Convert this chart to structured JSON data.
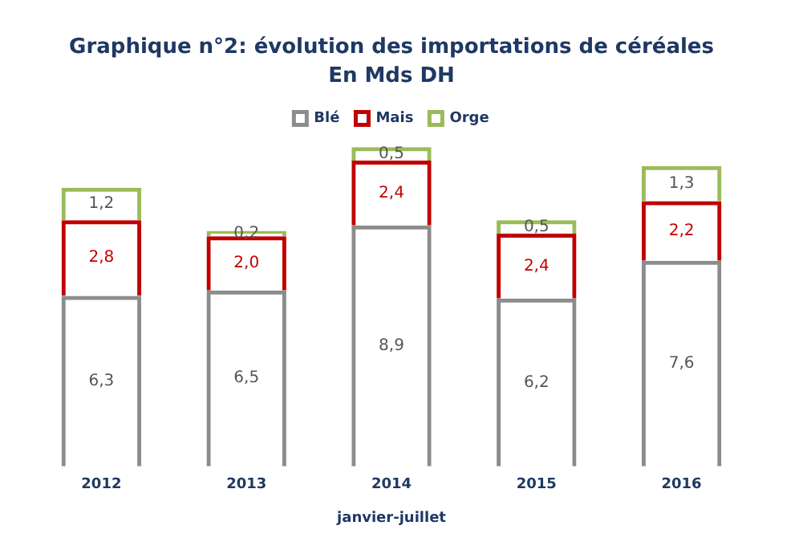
{
  "chart_data": {
    "type": "bar",
    "title": "Graphique n°2: évolution des importations de céréales",
    "subtitle": "En Mds DH",
    "xlabel": "janvier-juillet",
    "categories": [
      "2012",
      "2013",
      "2014",
      "2015",
      "2016"
    ],
    "stacked": true,
    "legend": "top",
    "grid": false,
    "tick_labels": "x",
    "series": [
      {
        "name": "Blé",
        "color": "#8c8c8c",
        "values": [
          6.3,
          6.5,
          8.9,
          6.2,
          7.6
        ],
        "value_labels": [
          "6,3",
          "6,5",
          "8,9",
          "6,2",
          "7,6"
        ]
      },
      {
        "name": "Mais",
        "color": "#c00000",
        "values": [
          2.8,
          2.0,
          2.4,
          2.4,
          2.2
        ],
        "value_labels": [
          "2,8",
          "2,0",
          "2,4",
          "2,4",
          "2,2"
        ]
      },
      {
        "name": "Orge",
        "color": "#9bbb59",
        "values": [
          1.2,
          0.2,
          0.5,
          0.5,
          1.3
        ],
        "value_labels": [
          "1,2",
          "0,2",
          "0,5",
          "0,5",
          "1,3"
        ]
      }
    ]
  }
}
